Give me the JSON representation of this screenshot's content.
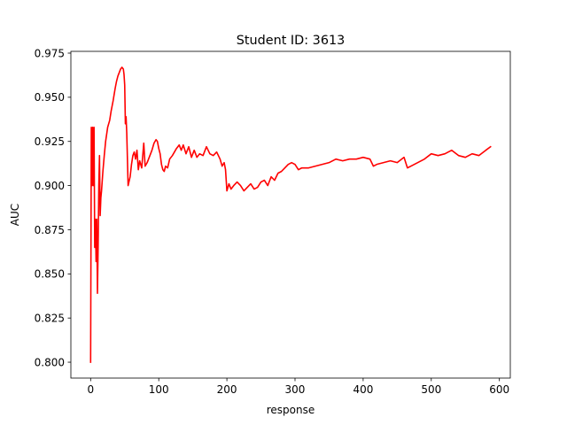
{
  "chart_data": {
    "type": "line",
    "title": "Student ID: 3613",
    "xlabel": "response",
    "ylabel": "AUC",
    "xlim": [
      -29,
      616
    ],
    "ylim": [
      0.791,
      0.976
    ],
    "xticks": [
      0,
      100,
      200,
      300,
      400,
      500,
      600
    ],
    "xtick_labels": [
      "0",
      "100",
      "200",
      "300",
      "400",
      "500",
      "600"
    ],
    "yticks": [
      0.8,
      0.825,
      0.85,
      0.875,
      0.9,
      0.925,
      0.95,
      0.975
    ],
    "ytick_labels": [
      "0.800",
      "0.825",
      "0.850",
      "0.875",
      "0.900",
      "0.925",
      "0.950",
      "0.975"
    ],
    "grid": false,
    "colors": {
      "line": "#ff0000",
      "axes": "#000000",
      "background": "#ffffff"
    },
    "series": [
      {
        "x": [
          0,
          1,
          2,
          3,
          4,
          5,
          6,
          7,
          8,
          9,
          10,
          11,
          12,
          13,
          14,
          15,
          16,
          18,
          20,
          22,
          25,
          28,
          30,
          33,
          36,
          38,
          40,
          42,
          44,
          46,
          48,
          49,
          50,
          51,
          52,
          53,
          55,
          58,
          60,
          62,
          64,
          66,
          68,
          70,
          72,
          75,
          78,
          80,
          83,
          86,
          88,
          90,
          93,
          96,
          98,
          100,
          102,
          104,
          106,
          108,
          110,
          113,
          116,
          118,
          120,
          123,
          126,
          130,
          133,
          136,
          140,
          144,
          148,
          152,
          156,
          160,
          165,
          170,
          175,
          180,
          185,
          190,
          193,
          196,
          198,
          200,
          203,
          206,
          210,
          215,
          220,
          225,
          230,
          235,
          240,
          245,
          250,
          255,
          260,
          265,
          270,
          275,
          280,
          285,
          290,
          295,
          300,
          305,
          310,
          320,
          330,
          340,
          350,
          360,
          370,
          380,
          390,
          400,
          410,
          415,
          420,
          430,
          440,
          450,
          460,
          465,
          470,
          480,
          490,
          500,
          510,
          520,
          530,
          540,
          550,
          560,
          570,
          580,
          587
        ],
        "y": [
          0.8,
          0.933,
          0.9,
          0.933,
          0.9,
          0.933,
          0.865,
          0.881,
          0.857,
          0.881,
          0.839,
          0.865,
          0.9,
          0.917,
          0.883,
          0.893,
          0.897,
          0.908,
          0.917,
          0.925,
          0.933,
          0.937,
          0.942,
          0.948,
          0.955,
          0.959,
          0.962,
          0.964,
          0.966,
          0.967,
          0.966,
          0.963,
          0.957,
          0.935,
          0.939,
          0.93,
          0.9,
          0.905,
          0.912,
          0.917,
          0.919,
          0.915,
          0.92,
          0.909,
          0.914,
          0.91,
          0.924,
          0.911,
          0.913,
          0.916,
          0.918,
          0.92,
          0.924,
          0.926,
          0.925,
          0.921,
          0.918,
          0.912,
          0.909,
          0.908,
          0.911,
          0.91,
          0.915,
          0.916,
          0.917,
          0.919,
          0.921,
          0.923,
          0.92,
          0.923,
          0.918,
          0.922,
          0.916,
          0.92,
          0.916,
          0.918,
          0.917,
          0.922,
          0.918,
          0.917,
          0.919,
          0.915,
          0.911,
          0.913,
          0.909,
          0.897,
          0.901,
          0.898,
          0.9,
          0.902,
          0.9,
          0.897,
          0.899,
          0.901,
          0.898,
          0.899,
          0.902,
          0.903,
          0.9,
          0.905,
          0.903,
          0.907,
          0.908,
          0.91,
          0.912,
          0.913,
          0.912,
          0.909,
          0.91,
          0.91,
          0.911,
          0.912,
          0.913,
          0.915,
          0.914,
          0.915,
          0.915,
          0.916,
          0.915,
          0.911,
          0.912,
          0.913,
          0.914,
          0.913,
          0.916,
          0.91,
          0.911,
          0.913,
          0.915,
          0.918,
          0.917,
          0.918,
          0.92,
          0.917,
          0.916,
          0.918,
          0.917,
          0.92,
          0.922
        ]
      }
    ]
  }
}
